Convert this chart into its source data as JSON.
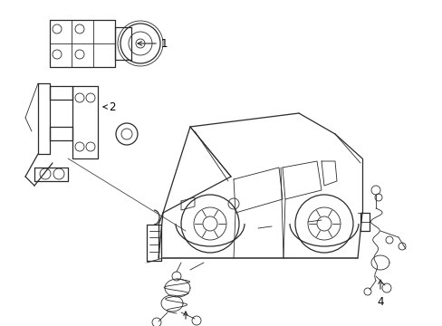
{
  "background_color": "#ffffff",
  "line_color": "#2a2a2a",
  "label_color": "#000000",
  "fig_width": 4.89,
  "fig_height": 3.6,
  "dpi": 100,
  "lw_main": 0.9,
  "lw_thin": 0.6,
  "lw_thick": 1.1,
  "label_fontsize": 8.5,
  "arrow_fontsize": 8.5
}
